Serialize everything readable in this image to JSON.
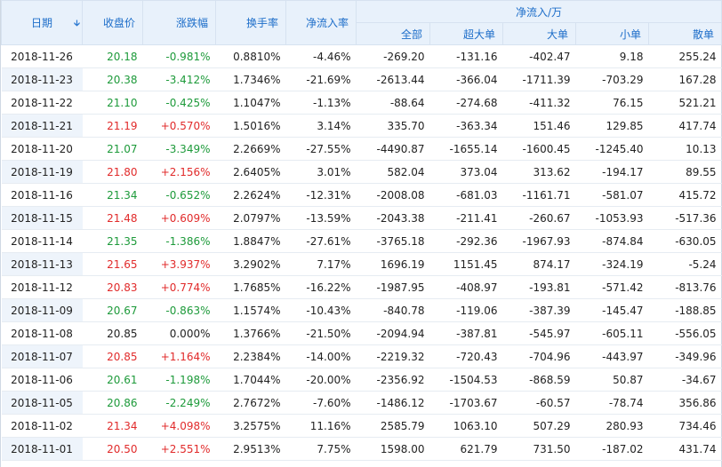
{
  "header": {
    "date": "日期",
    "sort_icon": "sort-down-icon",
    "close": "收盘价",
    "change": "涨跌幅",
    "turnover": "换手率",
    "net_rate": "净流入率",
    "group": "净流入/万",
    "sub": [
      "全部",
      "超大单",
      "大单",
      "小单",
      "散单"
    ]
  },
  "colors": {
    "up": "#e12b2b",
    "down": "#1d9a3a",
    "header_text": "#1c6dc9",
    "header_bg": "#e8f1fb"
  },
  "rows": [
    {
      "date": "2018-11-26",
      "close": "20.18",
      "chg": "-0.981%",
      "turn": "0.8810%",
      "rate": "-4.46%",
      "total": "-269.20",
      "xl": "-131.16",
      "l": "-402.47",
      "m": "9.18",
      "s": "255.24",
      "dir": "down"
    },
    {
      "date": "2018-11-23",
      "close": "20.38",
      "chg": "-3.412%",
      "turn": "1.7346%",
      "rate": "-21.69%",
      "total": "-2613.44",
      "xl": "-366.04",
      "l": "-1711.39",
      "m": "-703.29",
      "s": "167.28",
      "dir": "down"
    },
    {
      "date": "2018-11-22",
      "close": "21.10",
      "chg": "-0.425%",
      "turn": "1.1047%",
      "rate": "-1.13%",
      "total": "-88.64",
      "xl": "-274.68",
      "l": "-411.32",
      "m": "76.15",
      "s": "521.21",
      "dir": "down"
    },
    {
      "date": "2018-11-21",
      "close": "21.19",
      "chg": "+0.570%",
      "turn": "1.5016%",
      "rate": "3.14%",
      "total": "335.70",
      "xl": "-363.34",
      "l": "151.46",
      "m": "129.85",
      "s": "417.74",
      "dir": "up"
    },
    {
      "date": "2018-11-20",
      "close": "21.07",
      "chg": "-3.349%",
      "turn": "2.2669%",
      "rate": "-27.55%",
      "total": "-4490.87",
      "xl": "-1655.14",
      "l": "-1600.45",
      "m": "-1245.40",
      "s": "10.13",
      "dir": "down"
    },
    {
      "date": "2018-11-19",
      "close": "21.80",
      "chg": "+2.156%",
      "turn": "2.6405%",
      "rate": "3.01%",
      "total": "582.04",
      "xl": "373.04",
      "l": "313.62",
      "m": "-194.17",
      "s": "89.55",
      "dir": "up"
    },
    {
      "date": "2018-11-16",
      "close": "21.34",
      "chg": "-0.652%",
      "turn": "2.2624%",
      "rate": "-12.31%",
      "total": "-2008.08",
      "xl": "-681.03",
      "l": "-1161.71",
      "m": "-581.07",
      "s": "415.72",
      "dir": "down"
    },
    {
      "date": "2018-11-15",
      "close": "21.48",
      "chg": "+0.609%",
      "turn": "2.0797%",
      "rate": "-13.59%",
      "total": "-2043.38",
      "xl": "-211.41",
      "l": "-260.67",
      "m": "-1053.93",
      "s": "-517.36",
      "dir": "up"
    },
    {
      "date": "2018-11-14",
      "close": "21.35",
      "chg": "-1.386%",
      "turn": "1.8847%",
      "rate": "-27.61%",
      "total": "-3765.18",
      "xl": "-292.36",
      "l": "-1967.93",
      "m": "-874.84",
      "s": "-630.05",
      "dir": "down"
    },
    {
      "date": "2018-11-13",
      "close": "21.65",
      "chg": "+3.937%",
      "turn": "3.2902%",
      "rate": "7.17%",
      "total": "1696.19",
      "xl": "1151.45",
      "l": "874.17",
      "m": "-324.19",
      "s": "-5.24",
      "dir": "up"
    },
    {
      "date": "2018-11-12",
      "close": "20.83",
      "chg": "+0.774%",
      "turn": "1.7685%",
      "rate": "-16.22%",
      "total": "-1987.95",
      "xl": "-408.97",
      "l": "-193.81",
      "m": "-571.42",
      "s": "-813.76",
      "dir": "up"
    },
    {
      "date": "2018-11-09",
      "close": "20.67",
      "chg": "-0.863%",
      "turn": "1.1574%",
      "rate": "-10.43%",
      "total": "-840.78",
      "xl": "-119.06",
      "l": "-387.39",
      "m": "-145.47",
      "s": "-188.85",
      "dir": "down"
    },
    {
      "date": "2018-11-08",
      "close": "20.85",
      "chg": "0.000%",
      "turn": "1.3766%",
      "rate": "-21.50%",
      "total": "-2094.94",
      "xl": "-387.81",
      "l": "-545.97",
      "m": "-605.11",
      "s": "-556.05",
      "dir": "flat"
    },
    {
      "date": "2018-11-07",
      "close": "20.85",
      "chg": "+1.164%",
      "turn": "2.2384%",
      "rate": "-14.00%",
      "total": "-2219.32",
      "xl": "-720.43",
      "l": "-704.96",
      "m": "-443.97",
      "s": "-349.96",
      "dir": "up"
    },
    {
      "date": "2018-11-06",
      "close": "20.61",
      "chg": "-1.198%",
      "turn": "1.7044%",
      "rate": "-20.00%",
      "total": "-2356.92",
      "xl": "-1504.53",
      "l": "-868.59",
      "m": "50.87",
      "s": "-34.67",
      "dir": "down"
    },
    {
      "date": "2018-11-05",
      "close": "20.86",
      "chg": "-2.249%",
      "turn": "2.7672%",
      "rate": "-7.60%",
      "total": "-1486.12",
      "xl": "-1703.67",
      "l": "-60.57",
      "m": "-78.74",
      "s": "356.86",
      "dir": "down"
    },
    {
      "date": "2018-11-02",
      "close": "21.34",
      "chg": "+4.098%",
      "turn": "3.2575%",
      "rate": "11.16%",
      "total": "2585.79",
      "xl": "1063.10",
      "l": "507.29",
      "m": "280.93",
      "s": "734.46",
      "dir": "up"
    },
    {
      "date": "2018-11-01",
      "close": "20.50",
      "chg": "+2.551%",
      "turn": "2.9513%",
      "rate": "7.75%",
      "total": "1598.00",
      "xl": "621.79",
      "l": "731.50",
      "m": "-187.02",
      "s": "431.74",
      "dir": "up"
    }
  ]
}
